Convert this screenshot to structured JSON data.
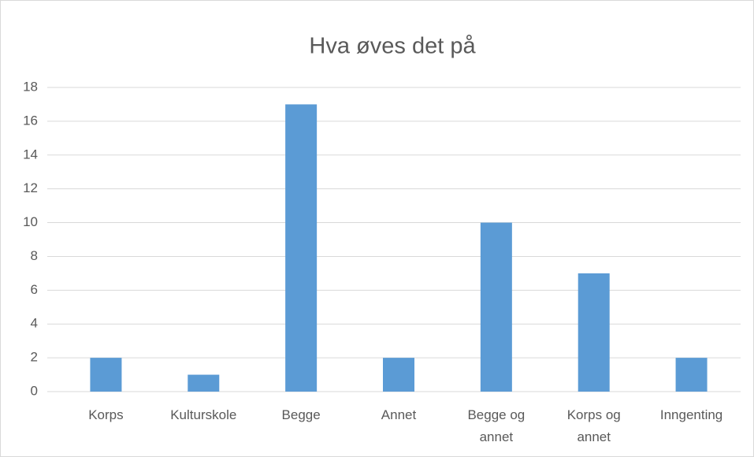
{
  "chart_data": {
    "type": "bar",
    "title": "Hva øves det på",
    "categories": [
      "Korps",
      "Kulturskole",
      "Begge",
      "Annet",
      "Begge og annet",
      "Korps og annet",
      "Inngenting"
    ],
    "values": [
      2,
      1,
      17,
      2,
      10,
      7,
      2
    ],
    "color": "#5b9bd5",
    "ylim": [
      0,
      18
    ],
    "yticks": [
      0,
      2,
      4,
      6,
      8,
      10,
      12,
      14,
      16,
      18
    ],
    "grid": true
  }
}
